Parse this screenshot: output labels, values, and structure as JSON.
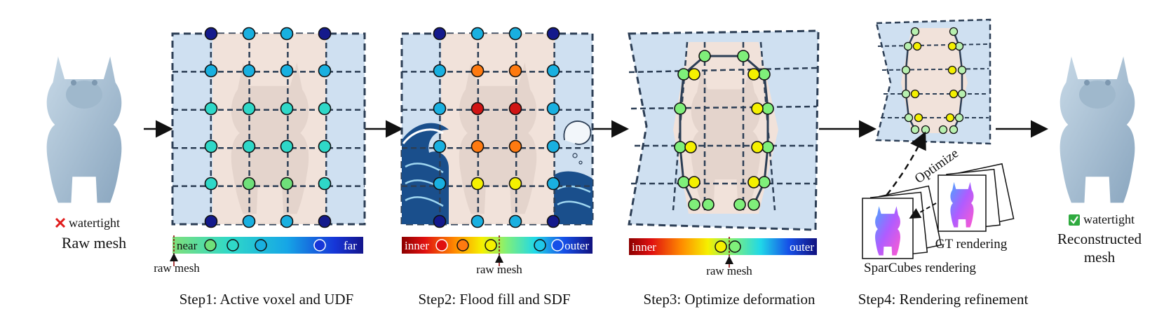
{
  "left": {
    "status": "watertight",
    "caption": "Raw mesh"
  },
  "step1": {
    "near": "near",
    "far": "far",
    "marker": "raw mesh",
    "title": "Step1: Active voxel and UDF"
  },
  "step2": {
    "inner": "inner",
    "outer": "outer",
    "marker": "raw mesh",
    "title": "Step2: Flood fill and SDF"
  },
  "step3": {
    "inner": "inner",
    "outer": "outer",
    "marker": "raw mesh",
    "title": "Step3: Optimize deformation"
  },
  "step4": {
    "optimize": "Optimize",
    "gt": "GT rendering",
    "spar": "SparCubes rendering",
    "title": "Step4: Rendering refinement"
  },
  "right": {
    "status": "watertight",
    "caption_line1": "Reconstructed",
    "caption_line2": "mesh"
  },
  "colors": {
    "grid_fill": "#cfe0f1",
    "body_fill": "#f7e2d6",
    "grid_line": "#2c3e55",
    "mesh": "#a9c2d8"
  }
}
